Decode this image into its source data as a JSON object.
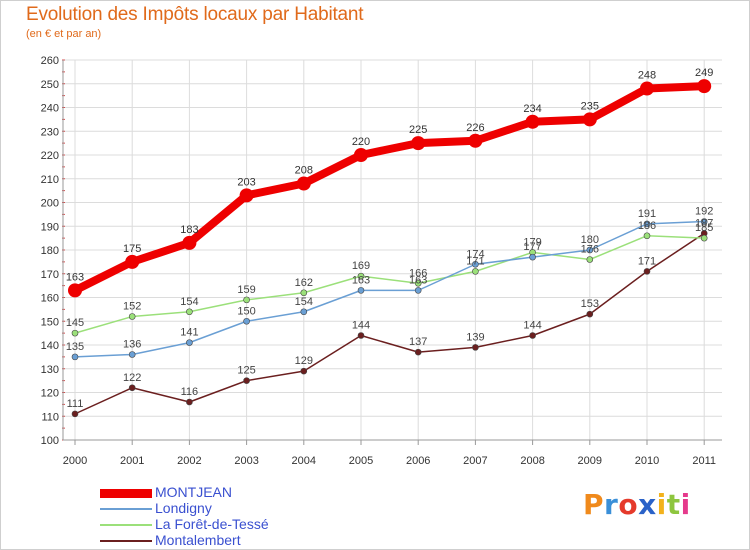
{
  "title": "Evolution des Impôts locaux par Habitant",
  "subtitle": "(en € et par an)",
  "brand": {
    "text": "Proxiti",
    "letters": [
      {
        "ch": "P",
        "color": "#f08a1c"
      },
      {
        "ch": "r",
        "color": "#3a8fd8"
      },
      {
        "ch": "o",
        "color": "#e53a2b"
      },
      {
        "ch": "x",
        "color": "#2a62c8"
      },
      {
        "ch": "i",
        "color": "#f3b21c"
      },
      {
        "ch": "t",
        "color": "#8ec63f"
      },
      {
        "ch": "i",
        "color": "#e53a8c"
      }
    ]
  },
  "chart_data": {
    "type": "line",
    "title": "Evolution des Impôts locaux par Habitant",
    "subtitle": "(en € et par an)",
    "xlabel": "",
    "ylabel": "",
    "x": [
      "2000",
      "2001",
      "2002",
      "2003",
      "2004",
      "2005",
      "2006",
      "2007",
      "2008",
      "2009",
      "2010",
      "2011"
    ],
    "ylim": [
      100,
      260
    ],
    "yticks": [
      100,
      110,
      120,
      130,
      140,
      150,
      160,
      170,
      180,
      190,
      200,
      210,
      220,
      230,
      240,
      250,
      260
    ],
    "grid": true,
    "legend_position": "bottom-left",
    "series": [
      {
        "name": "MONTJEAN",
        "color": "#ee0000",
        "values": [
          163,
          175,
          183,
          203,
          208,
          220,
          225,
          226,
          234,
          235,
          248,
          249
        ]
      },
      {
        "name": "Londigny",
        "color": "#6a9fd4",
        "values": [
          135,
          136,
          141,
          150,
          154,
          163,
          163,
          174,
          177,
          180,
          191,
          192
        ]
      },
      {
        "name": "La Forêt-de-Tessé",
        "color": "#9be07a",
        "values": [
          145,
          152,
          154,
          159,
          162,
          169,
          166,
          171,
          179,
          176,
          186,
          185
        ]
      },
      {
        "name": "Montalembert",
        "color": "#6b1f1f",
        "values": [
          111,
          122,
          116,
          125,
          129,
          144,
          137,
          139,
          144,
          153,
          171,
          187
        ]
      }
    ]
  }
}
